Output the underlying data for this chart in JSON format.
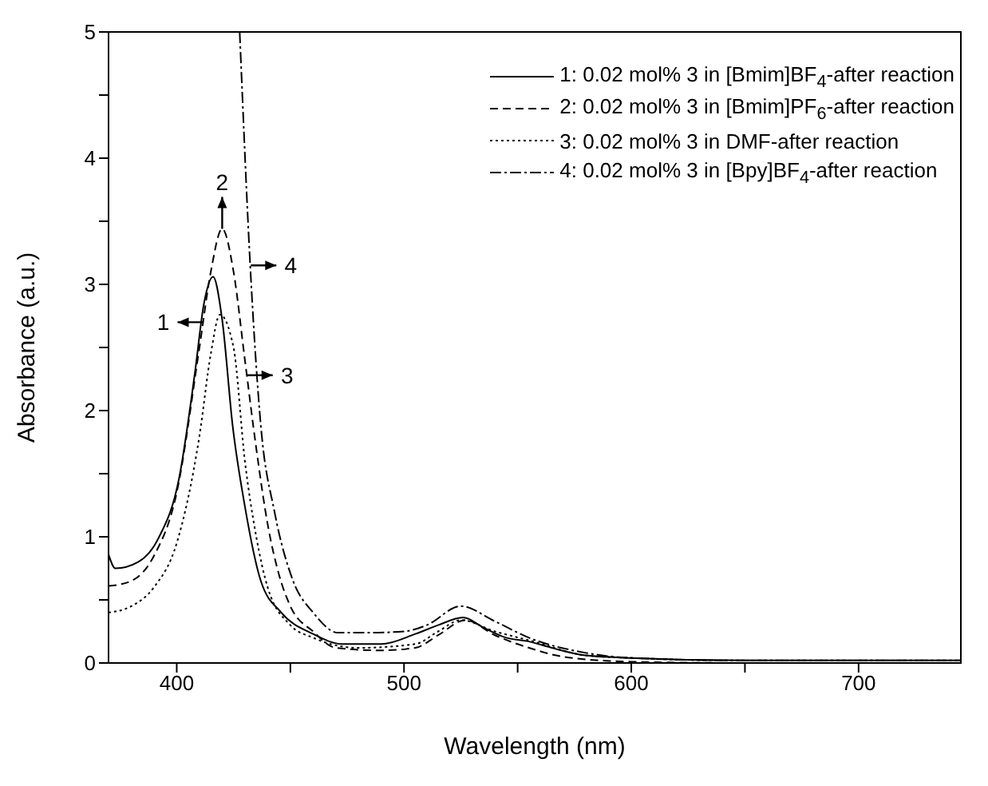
{
  "chart_data": {
    "type": "line",
    "xlabel": "Wavelength (nm)",
    "ylabel": "Absorbance (a.u.)",
    "xlim": [
      370,
      745
    ],
    "xticks": [
      400,
      {
        "value": 450,
        "label": null
      },
      500,
      {
        "value": 550,
        "label": null
      },
      600,
      {
        "value": 650,
        "label": null
      },
      700
    ],
    "ylim": [
      0,
      5
    ],
    "yticks": [
      0,
      {
        "value": 0.5,
        "label": null
      },
      1,
      {
        "value": 1.5,
        "label": null
      },
      2,
      {
        "value": 2.5,
        "label": null
      },
      3,
      {
        "value": 3.5,
        "label": null
      },
      4,
      {
        "value": 4.5,
        "label": null
      },
      5
    ],
    "grid": false,
    "legend": "top right",
    "marker": "none",
    "series": [
      {
        "name": "1: 0.02 mol% 3 in [Bmim]BF$_{4}$-after reaction",
        "color": "#000000",
        "line_style": "solid",
        "x": [
          370,
          373,
          383,
          392,
          401,
          408,
          412,
          416,
          420,
          424.6,
          430,
          437,
          446,
          460,
          473,
          490,
          505,
          515,
          526,
          535,
          545,
          555,
          565,
          580,
          600,
          650,
          700,
          745
        ],
        "values": [
          0.86,
          0.75,
          0.8,
          0.99,
          1.46,
          2.3,
          2.85,
          3.06,
          2.72,
          1.88,
          1.24,
          0.65,
          0.4,
          0.23,
          0.15,
          0.15,
          0.23,
          0.3,
          0.36,
          0.28,
          0.2,
          0.17,
          0.12,
          0.06,
          0.04,
          0.02,
          0.02,
          0.02
        ]
      },
      {
        "name": "2: 0.02 mol% 3 in [Bmim]PF$_{6}$-after reaction",
        "color": "#000000",
        "line_style": "dashed",
        "x": [
          370,
          380,
          390,
          400,
          410,
          415,
          420,
          425,
          430,
          435,
          440,
          445,
          450,
          460,
          470,
          490,
          505,
          515,
          527,
          540,
          555,
          570,
          600,
          650,
          700,
          745
        ],
        "values": [
          0.61,
          0.65,
          0.85,
          1.35,
          2.5,
          3.1,
          3.44,
          3.1,
          2.4,
          1.7,
          1.1,
          0.7,
          0.45,
          0.25,
          0.12,
          0.1,
          0.12,
          0.22,
          0.34,
          0.22,
          0.12,
          0.05,
          0.01,
          0.0,
          0.0,
          0.0
        ]
      },
      {
        "name": "3: 0.02 mol% 3 in DMF-after reaction",
        "color": "#000000",
        "line_style": "dotted",
        "x": [
          370,
          380,
          390,
          400,
          410,
          415,
          419,
          425,
          430,
          435,
          440,
          450,
          460,
          480,
          505,
          515,
          525,
          540,
          555,
          580,
          600,
          650,
          700,
          745
        ],
        "values": [
          0.4,
          0.45,
          0.6,
          0.95,
          1.8,
          2.45,
          2.76,
          2.5,
          1.6,
          1.0,
          0.6,
          0.3,
          0.2,
          0.12,
          0.15,
          0.25,
          0.34,
          0.25,
          0.18,
          0.06,
          0.04,
          0.02,
          0.02,
          0.02
        ]
      },
      {
        "name": "4: 0.02 mol% 3 in [Bpy]BF$_{4}$-after reaction",
        "color": "#000000",
        "line_style": "dashdot",
        "x": [
          427.7,
          432.6,
          437,
          443,
          451,
          460,
          471,
          485,
          500,
          510,
          525,
          540,
          555,
          580,
          600,
          650,
          700,
          745
        ],
        "values": [
          5.0,
          3.06,
          1.88,
          1.2,
          0.66,
          0.4,
          0.24,
          0.24,
          0.25,
          0.3,
          0.45,
          0.33,
          0.2,
          0.08,
          0.04,
          0.02,
          0.02,
          0.02
        ]
      }
    ],
    "annotations": [
      {
        "text": "1",
        "x": 411.6,
        "y": 2.7
      },
      {
        "text": "2",
        "x": 420,
        "y": 3.44
      },
      {
        "text": "3",
        "x": 431,
        "y": 2.28
      },
      {
        "text": "4",
        "x": 432.6,
        "y": 3.15
      }
    ]
  }
}
